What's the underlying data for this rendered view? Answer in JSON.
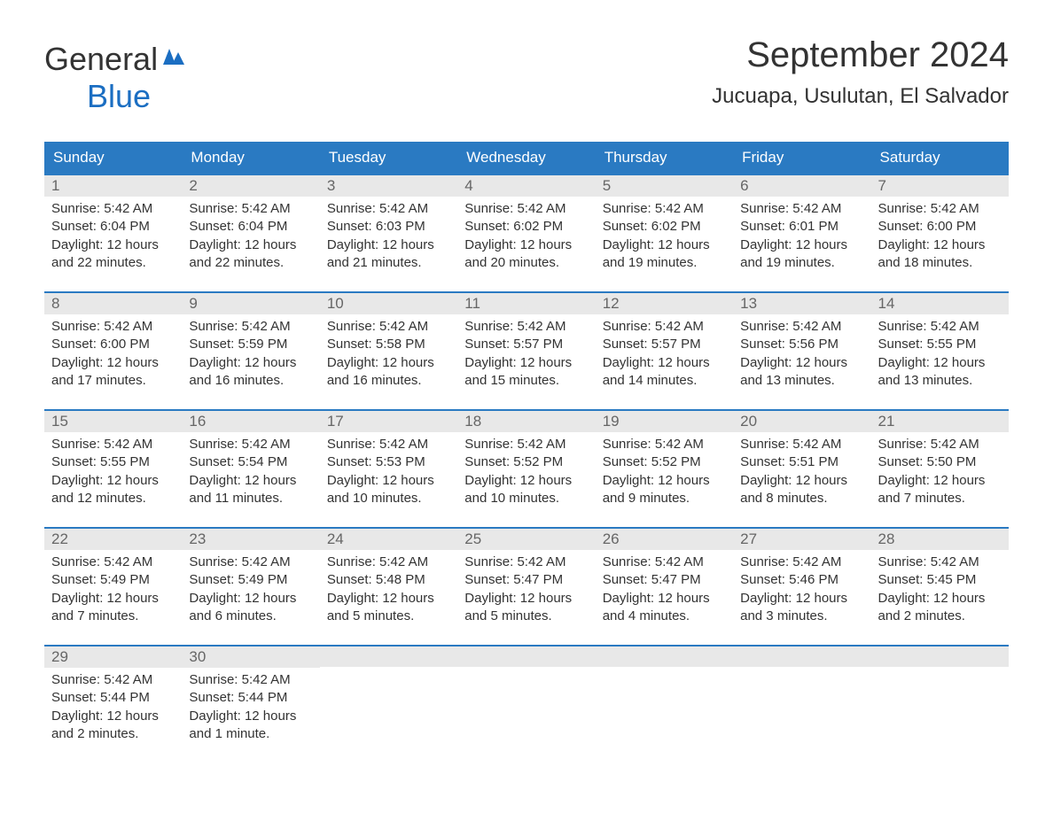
{
  "logo": {
    "general": "General",
    "blue": "Blue"
  },
  "title": "September 2024",
  "location": "Jucuapa, Usulutan, El Salvador",
  "colors": {
    "header_bg": "#2a7ac2",
    "header_text": "#ffffff",
    "day_number_bg": "#e8e8e8",
    "day_number_text": "#666666",
    "body_text": "#333333",
    "border": "#2a7ac2",
    "logo_blue": "#1b6ec2"
  },
  "weekdays": [
    "Sunday",
    "Monday",
    "Tuesday",
    "Wednesday",
    "Thursday",
    "Friday",
    "Saturday"
  ],
  "weeks": [
    [
      {
        "num": "1",
        "sunrise": "Sunrise: 5:42 AM",
        "sunset": "Sunset: 6:04 PM",
        "daylight1": "Daylight: 12 hours",
        "daylight2": "and 22 minutes."
      },
      {
        "num": "2",
        "sunrise": "Sunrise: 5:42 AM",
        "sunset": "Sunset: 6:04 PM",
        "daylight1": "Daylight: 12 hours",
        "daylight2": "and 22 minutes."
      },
      {
        "num": "3",
        "sunrise": "Sunrise: 5:42 AM",
        "sunset": "Sunset: 6:03 PM",
        "daylight1": "Daylight: 12 hours",
        "daylight2": "and 21 minutes."
      },
      {
        "num": "4",
        "sunrise": "Sunrise: 5:42 AM",
        "sunset": "Sunset: 6:02 PM",
        "daylight1": "Daylight: 12 hours",
        "daylight2": "and 20 minutes."
      },
      {
        "num": "5",
        "sunrise": "Sunrise: 5:42 AM",
        "sunset": "Sunset: 6:02 PM",
        "daylight1": "Daylight: 12 hours",
        "daylight2": "and 19 minutes."
      },
      {
        "num": "6",
        "sunrise": "Sunrise: 5:42 AM",
        "sunset": "Sunset: 6:01 PM",
        "daylight1": "Daylight: 12 hours",
        "daylight2": "and 19 minutes."
      },
      {
        "num": "7",
        "sunrise": "Sunrise: 5:42 AM",
        "sunset": "Sunset: 6:00 PM",
        "daylight1": "Daylight: 12 hours",
        "daylight2": "and 18 minutes."
      }
    ],
    [
      {
        "num": "8",
        "sunrise": "Sunrise: 5:42 AM",
        "sunset": "Sunset: 6:00 PM",
        "daylight1": "Daylight: 12 hours",
        "daylight2": "and 17 minutes."
      },
      {
        "num": "9",
        "sunrise": "Sunrise: 5:42 AM",
        "sunset": "Sunset: 5:59 PM",
        "daylight1": "Daylight: 12 hours",
        "daylight2": "and 16 minutes."
      },
      {
        "num": "10",
        "sunrise": "Sunrise: 5:42 AM",
        "sunset": "Sunset: 5:58 PM",
        "daylight1": "Daylight: 12 hours",
        "daylight2": "and 16 minutes."
      },
      {
        "num": "11",
        "sunrise": "Sunrise: 5:42 AM",
        "sunset": "Sunset: 5:57 PM",
        "daylight1": "Daylight: 12 hours",
        "daylight2": "and 15 minutes."
      },
      {
        "num": "12",
        "sunrise": "Sunrise: 5:42 AM",
        "sunset": "Sunset: 5:57 PM",
        "daylight1": "Daylight: 12 hours",
        "daylight2": "and 14 minutes."
      },
      {
        "num": "13",
        "sunrise": "Sunrise: 5:42 AM",
        "sunset": "Sunset: 5:56 PM",
        "daylight1": "Daylight: 12 hours",
        "daylight2": "and 13 minutes."
      },
      {
        "num": "14",
        "sunrise": "Sunrise: 5:42 AM",
        "sunset": "Sunset: 5:55 PM",
        "daylight1": "Daylight: 12 hours",
        "daylight2": "and 13 minutes."
      }
    ],
    [
      {
        "num": "15",
        "sunrise": "Sunrise: 5:42 AM",
        "sunset": "Sunset: 5:55 PM",
        "daylight1": "Daylight: 12 hours",
        "daylight2": "and 12 minutes."
      },
      {
        "num": "16",
        "sunrise": "Sunrise: 5:42 AM",
        "sunset": "Sunset: 5:54 PM",
        "daylight1": "Daylight: 12 hours",
        "daylight2": "and 11 minutes."
      },
      {
        "num": "17",
        "sunrise": "Sunrise: 5:42 AM",
        "sunset": "Sunset: 5:53 PM",
        "daylight1": "Daylight: 12 hours",
        "daylight2": "and 10 minutes."
      },
      {
        "num": "18",
        "sunrise": "Sunrise: 5:42 AM",
        "sunset": "Sunset: 5:52 PM",
        "daylight1": "Daylight: 12 hours",
        "daylight2": "and 10 minutes."
      },
      {
        "num": "19",
        "sunrise": "Sunrise: 5:42 AM",
        "sunset": "Sunset: 5:52 PM",
        "daylight1": "Daylight: 12 hours",
        "daylight2": "and 9 minutes."
      },
      {
        "num": "20",
        "sunrise": "Sunrise: 5:42 AM",
        "sunset": "Sunset: 5:51 PM",
        "daylight1": "Daylight: 12 hours",
        "daylight2": "and 8 minutes."
      },
      {
        "num": "21",
        "sunrise": "Sunrise: 5:42 AM",
        "sunset": "Sunset: 5:50 PM",
        "daylight1": "Daylight: 12 hours",
        "daylight2": "and 7 minutes."
      }
    ],
    [
      {
        "num": "22",
        "sunrise": "Sunrise: 5:42 AM",
        "sunset": "Sunset: 5:49 PM",
        "daylight1": "Daylight: 12 hours",
        "daylight2": "and 7 minutes."
      },
      {
        "num": "23",
        "sunrise": "Sunrise: 5:42 AM",
        "sunset": "Sunset: 5:49 PM",
        "daylight1": "Daylight: 12 hours",
        "daylight2": "and 6 minutes."
      },
      {
        "num": "24",
        "sunrise": "Sunrise: 5:42 AM",
        "sunset": "Sunset: 5:48 PM",
        "daylight1": "Daylight: 12 hours",
        "daylight2": "and 5 minutes."
      },
      {
        "num": "25",
        "sunrise": "Sunrise: 5:42 AM",
        "sunset": "Sunset: 5:47 PM",
        "daylight1": "Daylight: 12 hours",
        "daylight2": "and 5 minutes."
      },
      {
        "num": "26",
        "sunrise": "Sunrise: 5:42 AM",
        "sunset": "Sunset: 5:47 PM",
        "daylight1": "Daylight: 12 hours",
        "daylight2": "and 4 minutes."
      },
      {
        "num": "27",
        "sunrise": "Sunrise: 5:42 AM",
        "sunset": "Sunset: 5:46 PM",
        "daylight1": "Daylight: 12 hours",
        "daylight2": "and 3 minutes."
      },
      {
        "num": "28",
        "sunrise": "Sunrise: 5:42 AM",
        "sunset": "Sunset: 5:45 PM",
        "daylight1": "Daylight: 12 hours",
        "daylight2": "and 2 minutes."
      }
    ],
    [
      {
        "num": "29",
        "sunrise": "Sunrise: 5:42 AM",
        "sunset": "Sunset: 5:44 PM",
        "daylight1": "Daylight: 12 hours",
        "daylight2": "and 2 minutes."
      },
      {
        "num": "30",
        "sunrise": "Sunrise: 5:42 AM",
        "sunset": "Sunset: 5:44 PM",
        "daylight1": "Daylight: 12 hours",
        "daylight2": "and 1 minute."
      },
      {
        "empty": true
      },
      {
        "empty": true
      },
      {
        "empty": true
      },
      {
        "empty": true
      },
      {
        "empty": true
      }
    ]
  ]
}
